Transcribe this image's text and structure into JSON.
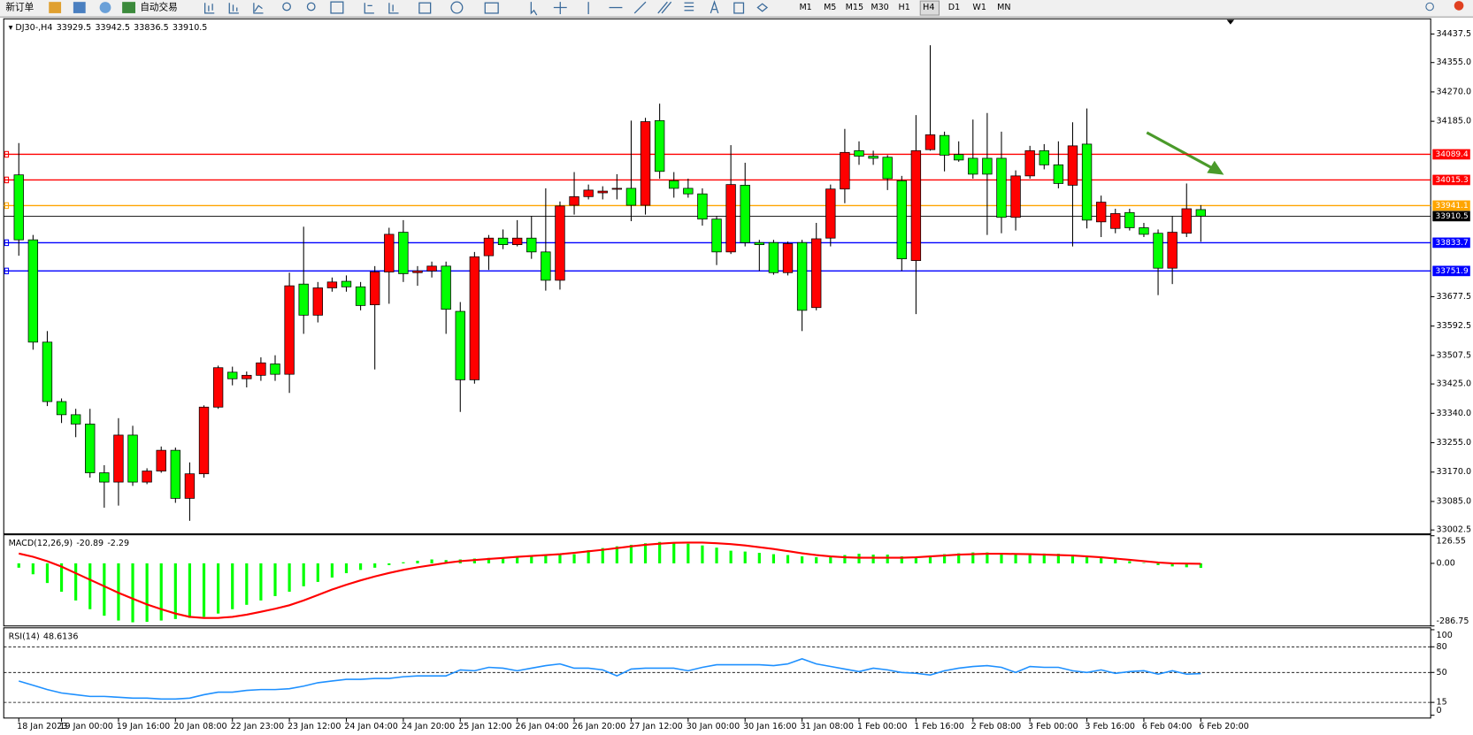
{
  "toolbar": {
    "new_order": "新订单",
    "auto_trading": "自动交易",
    "timeframes": [
      "M1",
      "M5",
      "M15",
      "M30",
      "H1",
      "H4",
      "D1",
      "W1",
      "MN"
    ],
    "active_timeframe": 5
  },
  "chart_data": [
    {
      "type": "candlestick",
      "title": "DJ30-,H4",
      "categories": [
        "18 Jan 2023",
        null,
        null,
        "19 Jan 00:00",
        null,
        null,
        null,
        "19 Jan 16:00",
        null,
        null,
        null,
        "20 Jan 08:00",
        null,
        null,
        null,
        "22 Jan 23:00",
        null,
        null,
        null,
        "23 Jan 12:00",
        null,
        null,
        null,
        "24 Jan 04:00",
        null,
        null,
        null,
        "24 Jan 20:00",
        null,
        null,
        null,
        "25 Jan 12:00",
        null,
        null,
        null,
        "26 Jan 04:00",
        null,
        null,
        null,
        "26 Jan 20:00",
        null,
        null,
        null,
        "27 Jan 12:00",
        null,
        null,
        null,
        "30 Jan 00:00",
        null,
        null,
        null,
        "30 Jan 16:00",
        null,
        null,
        null,
        "31 Jan 08:00",
        null,
        null,
        null,
        "1 Feb 00:00",
        null,
        null,
        null,
        "1 Feb 16:00",
        null,
        null,
        null,
        "2 Feb 08:00",
        null,
        null,
        null,
        "3 Feb 00:00",
        null,
        null,
        null,
        "3 Feb 16:00",
        null,
        null,
        null,
        "6 Feb 04:00",
        null,
        null,
        null,
        "6 Feb 20:00"
      ],
      "open": [
        34030,
        33842,
        33546,
        33374,
        33336,
        33309,
        33168,
        33141,
        33277,
        33141,
        33173,
        33233,
        33094,
        33165,
        33358,
        33459,
        33440,
        33450,
        33483,
        33453,
        33714,
        33624,
        33703,
        33722,
        33706,
        33654,
        33749,
        33864,
        33747,
        33752,
        33766,
        33635,
        33437,
        33796,
        33847,
        33828,
        33847,
        33807,
        33725,
        33942,
        33967,
        33978,
        33991,
        33991,
        33942,
        34187,
        34013,
        33991,
        33975,
        33902,
        33807,
        34000,
        33834,
        33834,
        33747,
        33834,
        33646,
        33847,
        33989,
        34100,
        34084,
        34081,
        34013,
        33782,
        34103,
        34144,
        34089,
        34078,
        34078,
        34078,
        33907,
        34027,
        34100,
        34059,
        34000,
        34119,
        33894,
        33875,
        33921,
        33877,
        33861,
        33760,
        33861,
        33929.5
      ],
      "high": [
        34122,
        33856,
        33578,
        33383,
        33353,
        33353,
        33190,
        33326,
        33304,
        33181,
        33244,
        33241,
        33198,
        33363,
        33478,
        33475,
        33461,
        33502,
        33508,
        33747,
        33880,
        33720,
        33733,
        33739,
        33720,
        33766,
        33877,
        33899,
        33766,
        33779,
        33779,
        33662,
        33807,
        33856,
        33872,
        33899,
        33910,
        33991,
        33953,
        34038,
        34002,
        33997,
        34032,
        34187,
        34195,
        34236,
        34038,
        34019,
        33991,
        33910,
        34116,
        34065,
        33842,
        33842,
        33837,
        33842,
        33891,
        34002,
        34163,
        34127,
        34100,
        34087,
        34027,
        34203,
        34405,
        34155,
        34127,
        34190,
        34209,
        34155,
        34043,
        34114,
        34119,
        34127,
        34182,
        34222,
        33970,
        33932,
        33932,
        33891,
        33872,
        33910,
        34005,
        33942.5
      ],
      "low": [
        33796,
        33524,
        33361,
        33312,
        33271,
        33154,
        33067,
        33073,
        33130,
        33135,
        33168,
        33081,
        33029,
        33154,
        33353,
        33421,
        33415,
        33434,
        33434,
        33399,
        33570,
        33603,
        33692,
        33692,
        33638,
        33467,
        33657,
        33720,
        33709,
        33733,
        33570,
        33344,
        33426,
        33755,
        33815,
        33823,
        33787,
        33695,
        33698,
        33915,
        33959,
        33959,
        33959,
        33896,
        33915,
        34019,
        33964,
        33964,
        33883,
        33769,
        33801,
        33823,
        33752,
        33741,
        33739,
        33578,
        33638,
        33823,
        33948,
        34059,
        34059,
        33986,
        33752,
        33627,
        34100,
        34040,
        34068,
        34019,
        33856,
        33861,
        33869,
        34019,
        34046,
        33991,
        33823,
        33875,
        33850,
        33861,
        33869,
        33850,
        33682,
        33714,
        33850,
        33836.5
      ],
      "close": [
        33842,
        33546,
        33374,
        33336,
        33309,
        33168,
        33141,
        33277,
        33141,
        33173,
        33233,
        33094,
        33165,
        33358,
        33472,
        33440,
        33450,
        33486,
        33453,
        33709,
        33624,
        33703,
        33720,
        33706,
        33652,
        33749,
        33858,
        33744,
        33752,
        33766,
        33641,
        33437,
        33793,
        33847,
        33828,
        33847,
        33807,
        33725,
        33940,
        33967,
        33986,
        33983,
        33991,
        33942,
        34184,
        34040,
        33991,
        33975,
        33902,
        33807,
        34002,
        33834,
        33828,
        33747,
        33831,
        33638,
        33845,
        33989,
        34095,
        34084,
        34078,
        34019,
        33787,
        34100,
        34146,
        34087,
        34073,
        34032,
        34032,
        33907,
        34027,
        34100,
        34059,
        34005,
        34114,
        33899,
        33951,
        33918,
        33877,
        33858,
        33760,
        33864,
        33932,
        33910.5
      ],
      "up_color": "#ff0000",
      "down_color": "#00ff00",
      "bid_line_color": "#000000",
      "ylim": [
        32994,
        34476
      ],
      "yticks": [
        34437.5,
        {
          "value": 34355,
          "label": "34355.0"
        },
        {
          "value": 34270,
          "label": "34270.0"
        },
        {
          "value": 34185,
          "label": "34185.0"
        },
        33677.5,
        33592.5,
        33507.5,
        {
          "value": 33425,
          "label": "33425.0"
        },
        {
          "value": 33340,
          "label": "33340.0"
        },
        {
          "value": 33255,
          "label": "33255.0"
        },
        {
          "value": 33170,
          "label": "33170.0"
        },
        {
          "value": 33085,
          "label": "33085.0"
        },
        33002.5
      ],
      "hlines": [
        {
          "value": 34089.4,
          "color": "#ff0000"
        },
        {
          "value": 34015.3,
          "color": "#ff0000"
        },
        {
          "value": 33941.1,
          "color": "#ffa500"
        },
        {
          "value": 33833.7,
          "color": "#0000ff"
        },
        {
          "value": 33751.9,
          "color": "#0000ff"
        }
      ]
    },
    {
      "type": "macd",
      "title": "MACD(12,26,9)",
      "ylim": [
        -286.75,
        126.55
      ],
      "yticks": [
        126.55,
        {
          "value": 0,
          "label": "0.00"
        },
        -286.75
      ],
      "series": [
        {
          "type": "bar",
          "color": "#00ff00",
          "values": [
            -20,
            -50,
            -90,
            -130,
            -170,
            -210,
            -240,
            -262,
            -270,
            -268,
            -262,
            -255,
            -250,
            -245,
            -230,
            -210,
            -190,
            -170,
            -150,
            -130,
            -105,
            -85,
            -65,
            -45,
            -30,
            -20,
            -8,
            5,
            12,
            18,
            15,
            18,
            22,
            25,
            28,
            30,
            33,
            36,
            40,
            42,
            60,
            70,
            78,
            85,
            92,
            98,
            95,
            90,
            82,
            72,
            58,
            54,
            48,
            42,
            38,
            32,
            28,
            30,
            38,
            44,
            40,
            40,
            32,
            24,
            36,
            42,
            46,
            50,
            50,
            48,
            46,
            46,
            45,
            44,
            40,
            32,
            25,
            18,
            10,
            2,
            -8,
            -14,
            -18,
            -20.89
          ]
        },
        {
          "type": "line",
          "color": "#ff0000",
          "values": [
            45,
            30,
            10,
            -15,
            -45,
            -75,
            -105,
            -135,
            -162,
            -188,
            -210,
            -230,
            -245,
            -250,
            -250,
            -245,
            -235,
            -222,
            -208,
            -192,
            -170,
            -145,
            -120,
            -98,
            -78,
            -60,
            -44,
            -30,
            -18,
            -8,
            2,
            10,
            15,
            20,
            25,
            30,
            34,
            38,
            42,
            48,
            55,
            62,
            70,
            78,
            85,
            90,
            94,
            95,
            95,
            92,
            88,
            82,
            74,
            66,
            56,
            46,
            38,
            32,
            28,
            26,
            26,
            26,
            26,
            28,
            32,
            36,
            40,
            42,
            44,
            44,
            43,
            42,
            40,
            38,
            36,
            32,
            28,
            22,
            16,
            10,
            4,
            0,
            -1,
            -2.29
          ]
        }
      ]
    },
    {
      "type": "line",
      "title": "RSI(14)",
      "ylim": [
        0,
        100
      ],
      "yticks": [
        100,
        80,
        50,
        15,
        0
      ],
      "color": "#1e90ff",
      "level_style": "dashed",
      "values": [
        40,
        35,
        30,
        26,
        24,
        22,
        22,
        21,
        20,
        20,
        19,
        19,
        20,
        24,
        27,
        27,
        29,
        30,
        30,
        31,
        34,
        38,
        40,
        42,
        42,
        43,
        43,
        45,
        46,
        46,
        46,
        53,
        52,
        56,
        55,
        52,
        55,
        58,
        60,
        55,
        55,
        53,
        46,
        54,
        55,
        55,
        55,
        52,
        56,
        59,
        59,
        59,
        59,
        58,
        60,
        66,
        60,
        57,
        54,
        51,
        55,
        53,
        50,
        49,
        47,
        52,
        55,
        57,
        58,
        56,
        50,
        57,
        56,
        56,
        52,
        50,
        53,
        49,
        51,
        52,
        48,
        52,
        48,
        48.6136
      ]
    }
  ]
}
